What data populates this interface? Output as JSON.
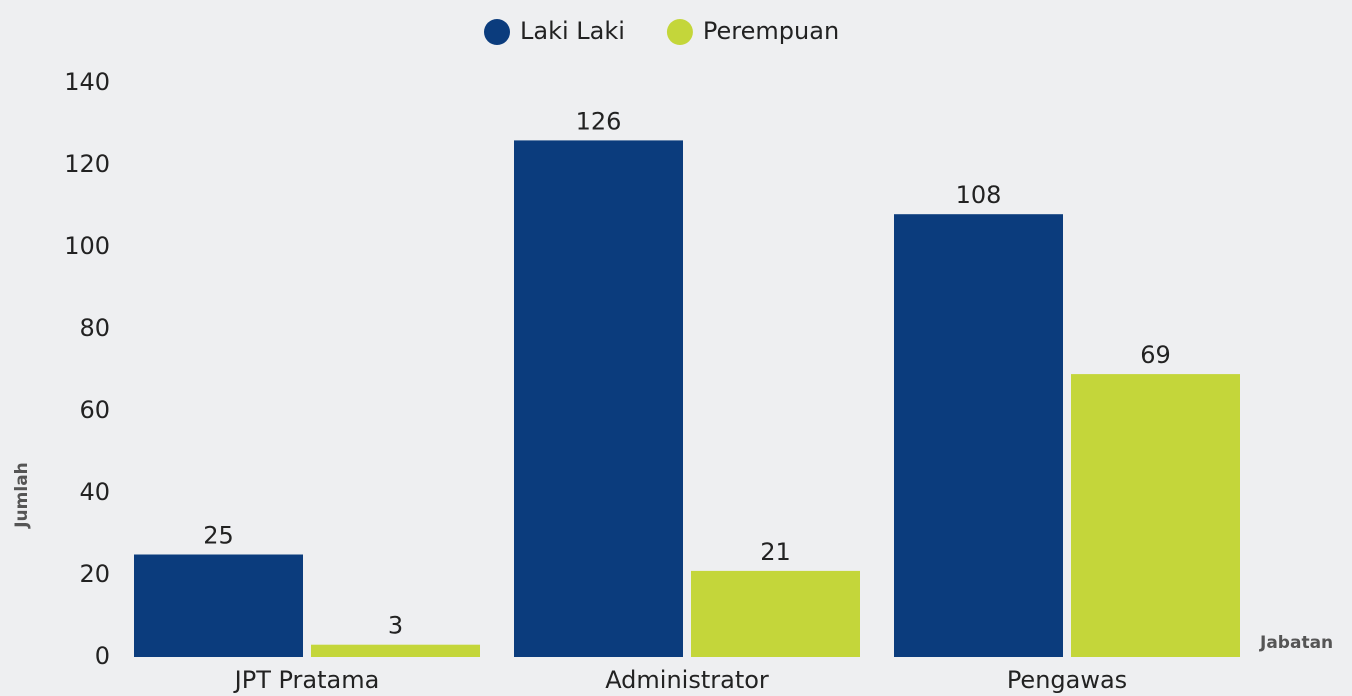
{
  "chart_data": {
    "type": "bar",
    "categories": [
      "JPT Pratama",
      "Administrator",
      "Pengawas"
    ],
    "series": [
      {
        "name": "Laki Laki",
        "color": "#0b3c7d",
        "values": [
          25,
          126,
          108
        ]
      },
      {
        "name": "Perempuan",
        "color": "#c4d63a",
        "values": [
          3,
          21,
          69
        ]
      }
    ],
    "xlabel": "Jabatan",
    "ylabel": "Jumlah",
    "ylim": [
      0,
      140
    ],
    "yticks": [
      0,
      20,
      40,
      60,
      80,
      100,
      120,
      140
    ],
    "grid": false,
    "legend": "top"
  }
}
